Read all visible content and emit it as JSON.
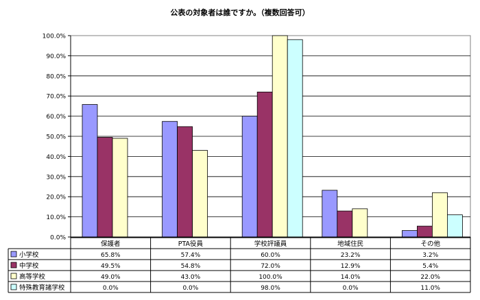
{
  "chart_data": {
    "type": "bar",
    "title": "公表の対象者は誰ですか。（複数回答可）",
    "categories": [
      "保護者",
      "PTA役員",
      "学校評議員",
      "地域住民",
      "その他"
    ],
    "series": [
      {
        "name": "小学校",
        "color": "#9999ff",
        "values": [
          65.8,
          57.4,
          60.0,
          23.2,
          3.2
        ],
        "labels": [
          "65.8%",
          "57.4%",
          "60.0%",
          "23.2%",
          "3.2%"
        ]
      },
      {
        "name": "中学校",
        "color": "#993366",
        "values": [
          49.5,
          54.8,
          72.0,
          12.9,
          5.4
        ],
        "labels": [
          "49.5%",
          "54.8%",
          "72.0%",
          "12.9%",
          "5.4%"
        ]
      },
      {
        "name": "高等学校",
        "color": "#ffffcc",
        "values": [
          49.0,
          43.0,
          100.0,
          14.0,
          22.0
        ],
        "labels": [
          "49.0%",
          "43.0%",
          "100.0%",
          "14.0%",
          "22.0%"
        ]
      },
      {
        "name": "特殊教育諸学校",
        "color": "#ccffff",
        "values": [
          0.0,
          0.0,
          98.0,
          0.0,
          11.0
        ],
        "labels": [
          "0.0%",
          "0.0%",
          "98.0%",
          "0.0%",
          "11.0%"
        ]
      }
    ],
    "ylim": [
      0,
      100
    ],
    "yticks": [
      "0.0%",
      "10.0%",
      "20.0%",
      "30.0%",
      "40.0%",
      "50.0%",
      "60.0%",
      "70.0%",
      "80.0%",
      "90.0%",
      "100.0%"
    ],
    "grid": true,
    "legend": "data-table-left"
  }
}
